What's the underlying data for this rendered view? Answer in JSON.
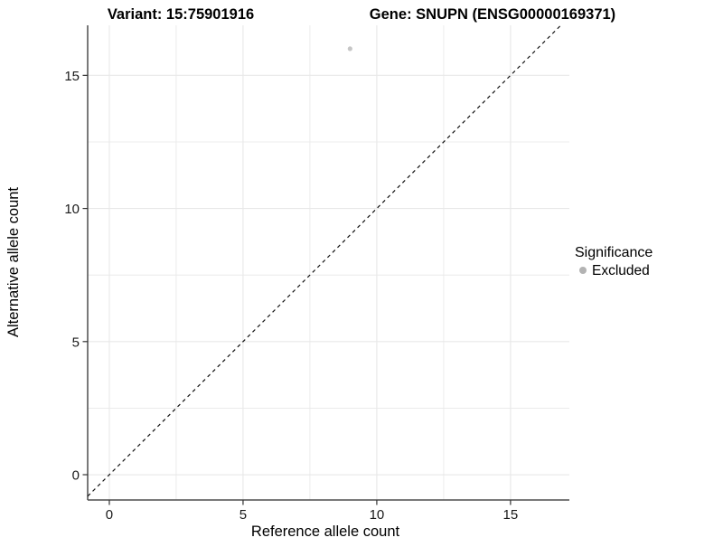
{
  "titles": {
    "variant": "Variant: 15:75901916",
    "gene": "Gene: SNUPN (ENSG00000169371)"
  },
  "chart_data": {
    "type": "scatter",
    "title_left": "Variant: 15:75901916",
    "title_right": "Gene: SNUPN (ENSG00000169371)",
    "xlabel": "Reference allele count",
    "ylabel": "Alternative allele count",
    "x_ticks": [
      0,
      5,
      10,
      15
    ],
    "y_ticks": [
      0,
      5,
      10,
      15
    ],
    "xlim": [
      -0.81,
      17.2
    ],
    "ylim": [
      -0.95,
      16.88
    ],
    "grid": "major and minor gridlines, minor at 2.5-unit midpoints",
    "points": [
      {
        "x": 9,
        "y": 16,
        "significance": "Excluded"
      }
    ],
    "reference_line": {
      "slope": 1,
      "intercept": 0,
      "style": "dashed",
      "color": "#111111"
    },
    "point_color": "#c6c6c6",
    "point_radius": 2.6,
    "legend": {
      "title": "Significance",
      "position": "right",
      "items": [
        {
          "label": "Excluded",
          "color": "#b3b3b3"
        }
      ]
    }
  },
  "colors": {
    "grid": "#e8e8e8",
    "axis_line": "#4d4d4d",
    "tick_mark": "#333333",
    "background": "#ffffff"
  }
}
